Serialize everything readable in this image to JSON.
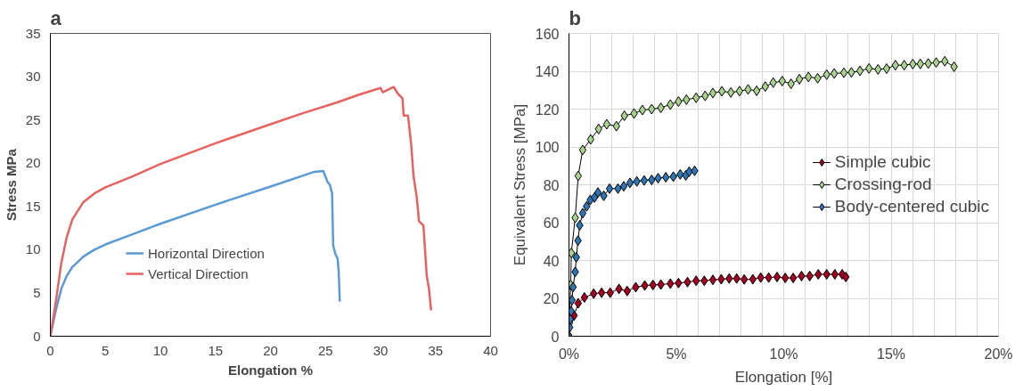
{
  "chart_data": [
    {
      "type": "line",
      "title": "a",
      "xlabel": "Elongation %",
      "ylabel": "Stress MPa",
      "xlim": [
        0,
        40
      ],
      "ylim": [
        0,
        35
      ],
      "xticks": [
        0,
        5,
        10,
        15,
        20,
        25,
        30,
        35,
        40
      ],
      "yticks": [
        0,
        5,
        10,
        15,
        20,
        25,
        30,
        35
      ],
      "grid": false,
      "legend": "bottom",
      "marker": "none",
      "line_style": "solid",
      "series": [
        {
          "name": "Horizontal Direction",
          "color": "#5b9bd5",
          "x": [
            0,
            0.5,
            1,
            1.5,
            2,
            3,
            4,
            5,
            7.5,
            10,
            15,
            20,
            24,
            24.8,
            25.2,
            25.4,
            25.6,
            25.7,
            25.9,
            26.1,
            26.2,
            26.3
          ],
          "values": [
            0,
            3,
            5.5,
            7,
            8,
            9.2,
            10,
            10.6,
            11.8,
            13,
            15.2,
            17.3,
            19,
            19.1,
            17.8,
            17.5,
            16.5,
            10.5,
            9.5,
            9,
            7.5,
            4
          ]
        },
        {
          "name": "Vertical Direction",
          "color": "#e8625f",
          "x": [
            0,
            0.5,
            1,
            1.5,
            2,
            3,
            4,
            5,
            7.5,
            10,
            15,
            20,
            23,
            26,
            28,
            30,
            30.2,
            30.7,
            31.2,
            31.6,
            32,
            32.1,
            32.5,
            32.8,
            33,
            33.3,
            33.5,
            33.9,
            34.2,
            34.4,
            34.6
          ],
          "values": [
            0,
            4,
            8.5,
            11.5,
            13.5,
            15.5,
            16.5,
            17.2,
            18.5,
            19.9,
            22.3,
            24.5,
            25.8,
            27,
            27.9,
            28.7,
            28.2,
            28.5,
            28.8,
            28,
            27.5,
            25.5,
            25.5,
            22,
            18.5,
            16,
            13.3,
            12.8,
            7,
            5.5,
            3
          ]
        }
      ]
    },
    {
      "type": "line",
      "title": "b",
      "xlabel": "Elongation [%]",
      "ylabel": "Equivalent Stress [MPa]",
      "xlim": [
        0,
        20
      ],
      "ylim": [
        0,
        160
      ],
      "xticks": [
        {
          "value": 0,
          "label": "0%"
        },
        {
          "value": 1,
          "label": null
        },
        {
          "value": 2,
          "label": null
        },
        {
          "value": 3,
          "label": null
        },
        {
          "value": 4,
          "label": null
        },
        {
          "value": 5,
          "label": "5%"
        },
        {
          "value": 6,
          "label": null
        },
        {
          "value": 7,
          "label": null
        },
        {
          "value": 8,
          "label": null
        },
        {
          "value": 9,
          "label": null
        },
        {
          "value": 10,
          "label": "10%"
        },
        {
          "value": 11,
          "label": null
        },
        {
          "value": 12,
          "label": null
        },
        {
          "value": 13,
          "label": null
        },
        {
          "value": 14,
          "label": null
        },
        {
          "value": 15,
          "label": "15%"
        },
        {
          "value": 16,
          "label": null
        },
        {
          "value": 17,
          "label": null
        },
        {
          "value": 18,
          "label": null
        },
        {
          "value": 19,
          "label": null
        },
        {
          "value": 20,
          "label": "20%"
        }
      ],
      "yticks": [
        0,
        20,
        40,
        60,
        80,
        100,
        120,
        140,
        160
      ],
      "grid": true,
      "legend": "right",
      "marker": "diamond",
      "line_style": "solid",
      "series": [
        {
          "name": "Simple cubic",
          "color": "#a50021",
          "x": [
            0,
            0.24,
            0.43,
            0.72,
            1.15,
            1.52,
            1.92,
            2.33,
            2.71,
            3.11,
            3.53,
            3.91,
            4.28,
            4.72,
            5.1,
            5.52,
            5.92,
            6.3,
            6.7,
            7.09,
            7.46,
            7.81,
            8.16,
            8.56,
            8.93,
            9.3,
            9.69,
            10.07,
            10.44,
            10.83,
            11.21,
            11.61,
            12,
            12.38,
            12.72,
            12.89
          ],
          "values": [
            0,
            11,
            17.4,
            20.5,
            22.5,
            23,
            23,
            25,
            23.9,
            25.9,
            26.8,
            27.1,
            27.3,
            27.8,
            28.1,
            28.6,
            29.3,
            29.3,
            29.8,
            30.1,
            30.5,
            30.5,
            30,
            30.1,
            31,
            31,
            31.3,
            30.8,
            30.8,
            31.8,
            31.8,
            32.7,
            32.7,
            32.7,
            32.7,
            31.3
          ]
        },
        {
          "name": "Crossing-rod",
          "color": "#a9d18e",
          "x": [
            0,
            0.08,
            0.11,
            0.29,
            0.43,
            0.64,
            1.01,
            1.38,
            1.76,
            2.21,
            2.58,
            3.03,
            3.42,
            3.85,
            4.28,
            4.72,
            5.1,
            5.47,
            5.92,
            6.34,
            6.7,
            7.12,
            7.54,
            7.94,
            8.34,
            8.74,
            9.14,
            9.51,
            9.93,
            10.34,
            10.73,
            11.15,
            11.58,
            12,
            12.35,
            12.8,
            13.15,
            13.55,
            13.97,
            14.39,
            14.79,
            15.2,
            15.61,
            16.01,
            16.36,
            16.73,
            17.1,
            17.5,
            17.93
          ],
          "values": [
            0,
            27,
            44,
            62.6,
            84.7,
            98.4,
            104,
            109.5,
            112,
            111,
            116.5,
            117.7,
            119.5,
            120,
            120.7,
            122.4,
            124,
            125,
            126,
            127,
            128.5,
            129.4,
            128.8,
            129.5,
            130.4,
            129.7,
            131.9,
            134,
            134.8,
            133.4,
            135.8,
            137,
            136.3,
            138.2,
            138.8,
            139.2,
            139.4,
            140.2,
            141.5,
            141,
            141.4,
            143.2,
            143.2,
            143.8,
            143.9,
            144.1,
            144.6,
            145.3,
            142.4
          ]
        },
        {
          "name": "Body-centered cubic",
          "color": "#2e75b6",
          "x": [
            0,
            0.03,
            0.06,
            0.1,
            0.14,
            0.19,
            0.29,
            0.34,
            0.42,
            0.5,
            0.64,
            0.82,
            0.99,
            1.19,
            1.35,
            1.62,
            1.89,
            2.28,
            2.55,
            2.84,
            3.16,
            3.5,
            3.85,
            4.15,
            4.51,
            4.86,
            5.18,
            5.44,
            5.6,
            5.85
          ],
          "values": [
            0,
            4.7,
            9,
            13.2,
            19,
            26,
            34,
            41.7,
            50.5,
            58.6,
            65,
            68.6,
            72,
            73.3,
            75.9,
            74.2,
            78,
            78,
            79.2,
            81,
            81.8,
            82.3,
            82.6,
            83.5,
            84,
            84.3,
            85.5,
            85,
            86.9,
            87.4
          ]
        }
      ]
    }
  ]
}
